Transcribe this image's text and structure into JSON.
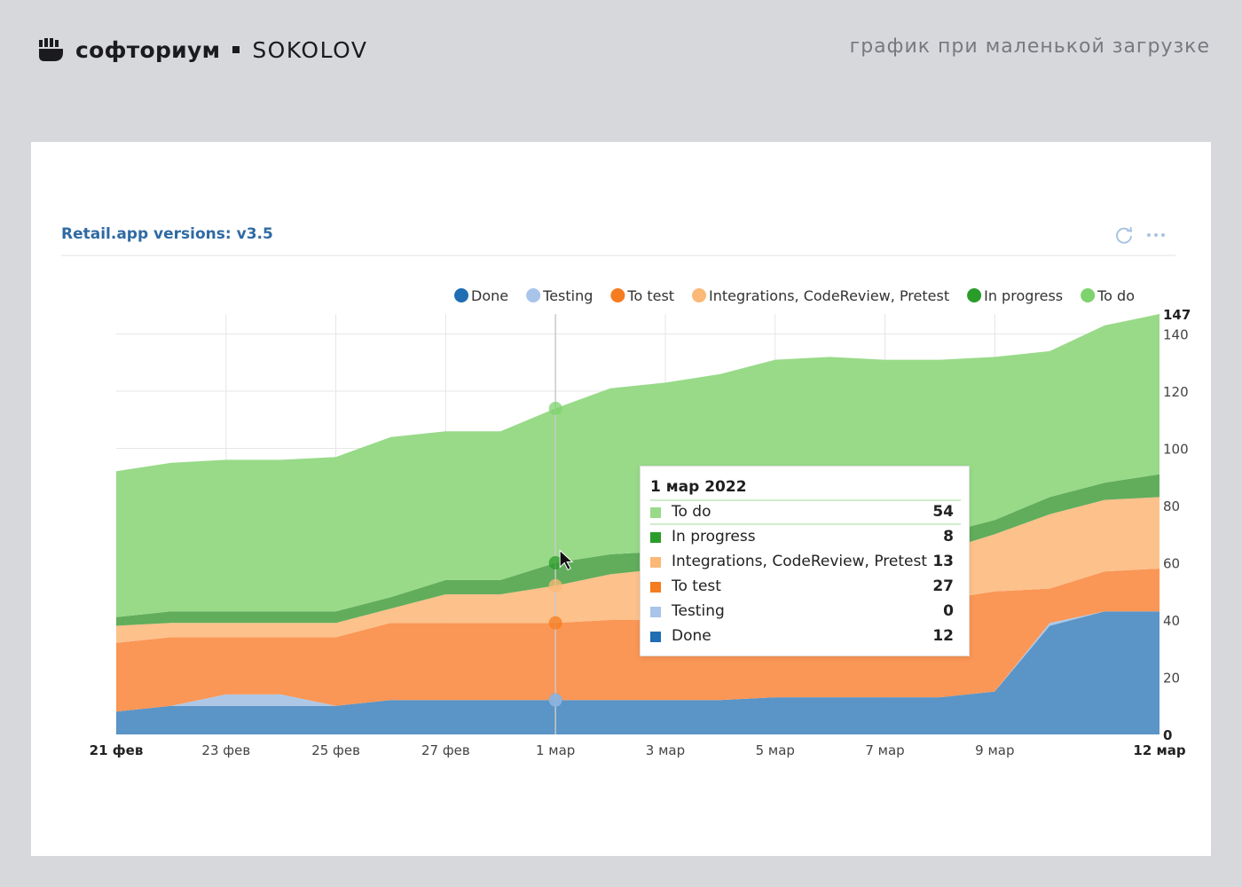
{
  "header": {
    "brand": "софториум",
    "partner": "SOKOLOV",
    "caption": "график при маленькой загрузке"
  },
  "widget": {
    "title": "Retail.app versions: v3.5",
    "icons": [
      "refresh-icon",
      "more-icon"
    ]
  },
  "colors": {
    "Done": "#5b94c6",
    "Testing": "#aec7e6",
    "To test": "#fa9656",
    "Integrations, CodeReview, Pretest": "#fdc18b",
    "In progress": "#61ad5b",
    "To do": "#98da88",
    "legend_Done": "#1f6db3",
    "legend_Testing": "#a8c4ea",
    "legend_To test": "#f57c1f",
    "legend_Integrations, CodeReview, Pretest": "#fbb876",
    "legend_In progress": "#2a9c2a",
    "legend_To do": "#7ed36e"
  },
  "chart_data": {
    "type": "area",
    "stacked": true,
    "x": [
      "21 фев",
      "22 фев",
      "23 фев",
      "24 фев",
      "25 фев",
      "26 фев",
      "27 фев",
      "28 фев",
      "1 мар",
      "2 мар",
      "3 мар",
      "4 мар",
      "5 мар",
      "6 мар",
      "7 мар",
      "8 мар",
      "9 мар",
      "10 мар",
      "11 мар",
      "12 мар"
    ],
    "x_tick_labels": [
      "21 фев",
      "23 фев",
      "25 фев",
      "27 фев",
      "1 мар",
      "3 мар",
      "5 мар",
      "7 мар",
      "9 мар",
      "12 мар"
    ],
    "legend": [
      "Done",
      "Testing",
      "To test",
      "Integrations, CodeReview, Pretest",
      "In progress",
      "To do"
    ],
    "legend_position": "top-right",
    "series": [
      {
        "name": "Done",
        "values": [
          8,
          10,
          10,
          10,
          10,
          12,
          12,
          12,
          12,
          12,
          12,
          12,
          13,
          13,
          13,
          13,
          15,
          38,
          43,
          43
        ]
      },
      {
        "name": "Testing",
        "values": [
          0,
          0,
          4,
          4,
          0,
          0,
          0,
          0,
          0,
          0,
          0,
          0,
          0,
          0,
          0,
          0,
          0,
          1,
          0,
          0
        ]
      },
      {
        "name": "To test",
        "values": [
          24,
          24,
          20,
          20,
          24,
          27,
          27,
          27,
          27,
          28,
          28,
          28,
          30,
          32,
          33,
          34,
          35,
          12,
          14,
          15
        ]
      },
      {
        "name": "Integrations, CodeReview, Pretest",
        "values": [
          6,
          5,
          5,
          5,
          5,
          5,
          10,
          10,
          13,
          16,
          18,
          17,
          17,
          17,
          17,
          17,
          20,
          26,
          25,
          25
        ]
      },
      {
        "name": "In progress",
        "values": [
          3,
          4,
          4,
          4,
          4,
          4,
          5,
          5,
          8,
          7,
          6,
          6,
          6,
          5,
          5,
          6,
          5,
          6,
          6,
          8
        ]
      },
      {
        "name": "To do",
        "values": [
          51,
          52,
          53,
          53,
          54,
          56,
          52,
          52,
          54,
          58,
          59,
          63,
          65,
          65,
          63,
          61,
          57,
          51,
          55,
          56
        ]
      }
    ],
    "yaxis_labels": [
      0,
      20,
      40,
      60,
      80,
      100,
      120,
      140,
      147
    ],
    "ylim": [
      0,
      147
    ],
    "y_axis_side": "right",
    "grid": true
  },
  "tooltip": {
    "title": "1 мар 2022",
    "rows": [
      {
        "label": "To do",
        "value": "54"
      },
      {
        "label": "In progress",
        "value": "8"
      },
      {
        "label": "Integrations, CodeReview, Pretest",
        "value": "13"
      },
      {
        "label": "To test",
        "value": "27"
      },
      {
        "label": "Testing",
        "value": "0"
      },
      {
        "label": "Done",
        "value": "12"
      }
    ]
  }
}
